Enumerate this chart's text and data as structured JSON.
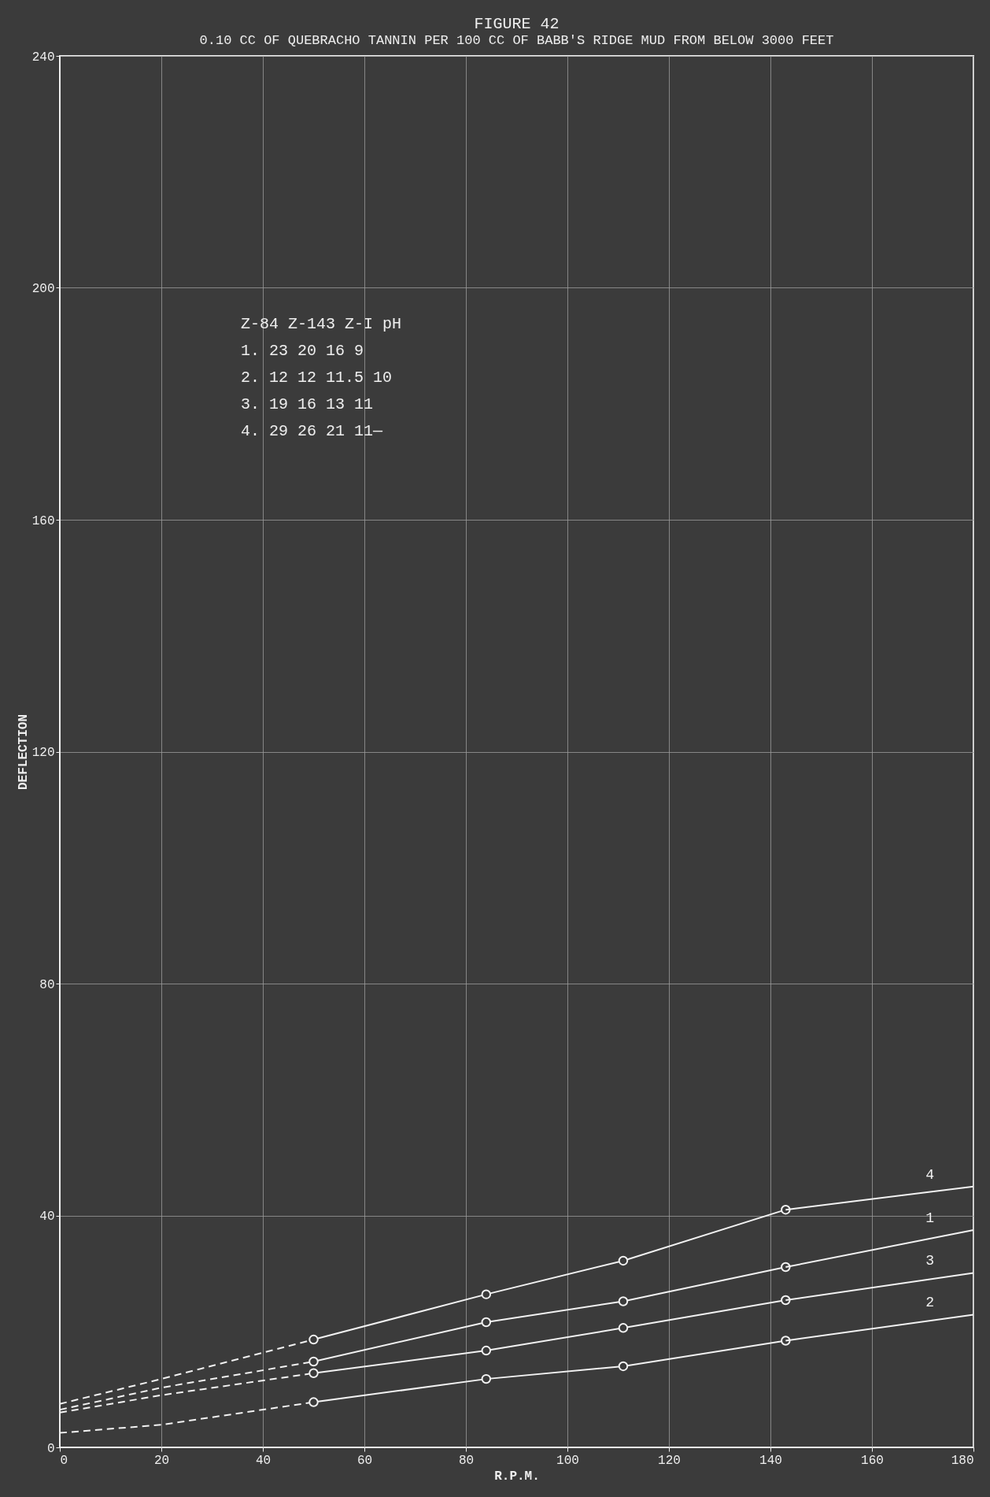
{
  "chart_data": {
    "type": "line",
    "title": "FIGURE 42",
    "subtitle": "0.10 CC OF QUEBRACHO TANNIN PER 100 CC OF BABB'S RIDGE MUD FROM BELOW 3000 FEET",
    "xlabel": "R.P.M.",
    "ylabel": "DEFLECTION",
    "xlim": [
      0,
      180
    ],
    "ylim": [
      0,
      240
    ],
    "xticks": [
      0,
      20,
      40,
      60,
      80,
      100,
      120,
      140,
      160,
      180
    ],
    "yticks": [
      0,
      40,
      80,
      120,
      160,
      200,
      240
    ],
    "grid": true,
    "series": [
      {
        "color": "#f2f2f2",
        "line_style": "dashed",
        "marker": "none",
        "x": [
          0,
          20,
          50
        ],
        "values": [
          6.5,
          10.3,
          14.8
        ]
      },
      {
        "color": "#f2f2f2",
        "line_style": "dashed",
        "marker": "none",
        "x": [
          0,
          20,
          50
        ],
        "values": [
          2.5,
          3.9,
          7.8
        ]
      },
      {
        "color": "#f2f2f2",
        "line_style": "dashed",
        "marker": "none",
        "x": [
          0,
          20,
          50
        ],
        "values": [
          6,
          9,
          12.8
        ]
      },
      {
        "color": "#f2f2f2",
        "line_style": "dashed",
        "marker": "none",
        "x": [
          0,
          20,
          50
        ],
        "values": [
          7.5,
          11.8,
          18.6
        ]
      },
      {
        "color": "#f2f2f2",
        "line_style": "solid",
        "marker": "circle",
        "x": [
          50,
          84,
          111,
          143
        ],
        "values": [
          14.8,
          21.6,
          25.2,
          31.1
        ]
      },
      {
        "color": "#f2f2f2",
        "line_style": "solid",
        "marker": "circle",
        "x": [
          50,
          84,
          111,
          143
        ],
        "values": [
          7.8,
          11.8,
          14,
          18.4
        ]
      },
      {
        "color": "#f2f2f2",
        "line_style": "solid",
        "marker": "circle",
        "x": [
          50,
          84,
          111,
          143
        ],
        "values": [
          12.8,
          16.7,
          20.6,
          25.4
        ]
      },
      {
        "color": "#f2f2f2",
        "line_style": "solid",
        "marker": "circle",
        "x": [
          50,
          84,
          111,
          143
        ],
        "values": [
          18.6,
          26.4,
          32.2,
          41
        ]
      },
      {
        "name": "1",
        "color": "#f2f2f2",
        "line_style": "solid",
        "marker": "none",
        "x": [
          143,
          180
        ],
        "values": [
          31.1,
          37.5
        ]
      },
      {
        "name": "2",
        "color": "#f2f2f2",
        "line_style": "solid",
        "marker": "none",
        "x": [
          143,
          180
        ],
        "values": [
          18.4,
          22.9
        ]
      },
      {
        "name": "3",
        "color": "#f2f2f2",
        "line_style": "solid",
        "marker": "none",
        "x": [
          143,
          180
        ],
        "values": [
          25.4,
          30.1
        ]
      },
      {
        "name": "4",
        "color": "#f2f2f2",
        "line_style": "solid",
        "marker": "none",
        "x": [
          143,
          180
        ],
        "values": [
          41,
          45
        ]
      }
    ],
    "annotations": [
      "    Z-84   Z-143   Z-I    pH",
      "1.  23     20      16     9",
      "2.  12     12      11.5   10",
      "3.  19     16      13     11",
      "4.  29     26      21     11—"
    ]
  }
}
